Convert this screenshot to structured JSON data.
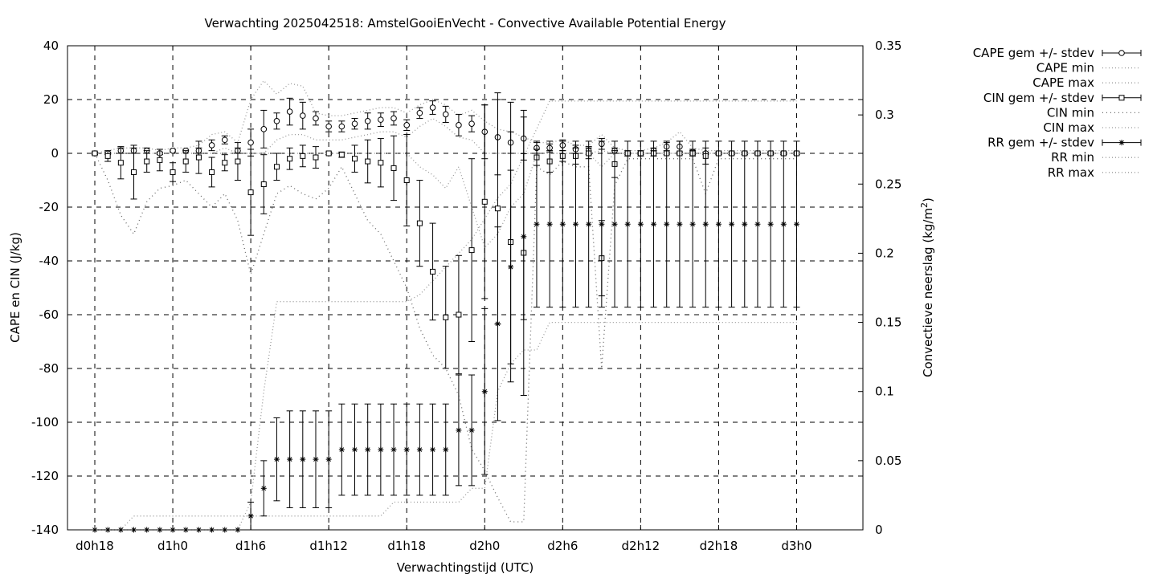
{
  "chart_data": {
    "type": "line",
    "title": "Verwachting 2025042518: AmstelGooiEnVecht - Convective Available Potential Energy",
    "xlabel": "Verwachtingstijd (UTC)",
    "ylabel": "CAPE en CIN (J/kg)",
    "y2label": "Convectieve neerslag (kg/m",
    "y2label_sup": "2",
    "y2label_end": ")",
    "xlim": [
      18,
      75
    ],
    "ylim": [
      -140,
      40
    ],
    "y2lim": [
      0,
      0.35
    ],
    "xticks": [
      {
        "value": 18,
        "label": "d0h18"
      },
      {
        "value": 24,
        "label": "d1h0"
      },
      {
        "value": 30,
        "label": "d1h6"
      },
      {
        "value": 36,
        "label": "d1h12"
      },
      {
        "value": 42,
        "label": "d1h18"
      },
      {
        "value": 48,
        "label": "d2h0"
      },
      {
        "value": 54,
        "label": "d2h6"
      },
      {
        "value": 60,
        "label": "d2h12"
      },
      {
        "value": 66,
        "label": "d2h18"
      },
      {
        "value": 72,
        "label": "d3h0"
      }
    ],
    "yticks": [
      {
        "value": 40,
        "label": "40"
      },
      {
        "value": 20,
        "label": "20"
      },
      {
        "value": 0,
        "label": "0"
      },
      {
        "value": -20,
        "label": "-20"
      },
      {
        "value": -40,
        "label": "-40"
      },
      {
        "value": -60,
        "label": "-60"
      },
      {
        "value": -80,
        "label": "-80"
      },
      {
        "value": -100,
        "label": "-100"
      },
      {
        "value": -120,
        "label": "-120"
      },
      {
        "value": -140,
        "label": "-140"
      }
    ],
    "y2ticks": [
      {
        "value": 0.35,
        "label": "0.35"
      },
      {
        "value": 0.3,
        "label": "0.3"
      },
      {
        "value": 0.25,
        "label": "0.25"
      },
      {
        "value": 0.2,
        "label": "0.2"
      },
      {
        "value": 0.15,
        "label": "0.15"
      },
      {
        "value": 0.1,
        "label": "0.1"
      },
      {
        "value": 0.05,
        "label": "0.05"
      },
      {
        "value": 0,
        "label": "0"
      }
    ],
    "grid": true,
    "legend_position": "outside-top-right",
    "x": [
      18,
      19,
      20,
      21,
      22,
      23,
      24,
      25,
      26,
      27,
      28,
      29,
      30,
      31,
      32,
      33,
      34,
      35,
      36,
      37,
      38,
      39,
      40,
      41,
      42,
      43,
      44,
      45,
      46,
      47,
      48,
      49,
      50,
      51,
      52,
      53,
      54,
      55,
      56,
      57,
      58,
      59,
      60,
      61,
      62,
      63,
      64,
      65,
      66,
      67,
      68,
      69,
      70,
      71,
      72
    ],
    "series": [
      {
        "name": "CAPE gem +/- stdev",
        "axis": "y1",
        "marker": "circle",
        "style": "errorbars",
        "mean": [
          0,
          0,
          1,
          1,
          1,
          0,
          1,
          1,
          1,
          3,
          5,
          1,
          4,
          9,
          12,
          15.5,
          14,
          13,
          10,
          10,
          11,
          12,
          12.5,
          13,
          10.5,
          15,
          17,
          14.5,
          10.5,
          11,
          8,
          6,
          4,
          5.5,
          2,
          2,
          3,
          1.5,
          1,
          3.5,
          1,
          0,
          0,
          1,
          2.5,
          2.5,
          0.5,
          0,
          0,
          0,
          0,
          0,
          0,
          0,
          0
        ],
        "stdev": [
          0.5,
          0.5,
          1,
          1,
          1,
          0.5,
          0.5,
          0.5,
          1,
          2,
          1.5,
          1,
          5,
          7,
          3,
          5,
          5,
          2.5,
          2,
          2,
          2,
          3,
          2.5,
          2.5,
          2,
          2,
          2.5,
          3,
          4,
          3,
          10,
          14,
          4,
          8,
          2,
          1.5,
          2,
          1.5,
          1.5,
          2,
          1,
          0.5,
          0.5,
          1,
          1.5,
          2,
          1,
          0.5,
          0.5,
          0.5,
          0.5,
          0.5,
          0.5,
          0.5,
          0.5
        ]
      },
      {
        "name": "CAPE min",
        "axis": "y1",
        "style": "dotted",
        "values": [
          0,
          0,
          0,
          0,
          0,
          0,
          0,
          0,
          0,
          0,
          2,
          0,
          0,
          0,
          5,
          7,
          7,
          5,
          5,
          5,
          6,
          7,
          8,
          8,
          6,
          10,
          13,
          10,
          6,
          5,
          0,
          0,
          0,
          0,
          0,
          0,
          0,
          0,
          0,
          1,
          0,
          0,
          0,
          0,
          0,
          0,
          0,
          0,
          0,
          0,
          0,
          0,
          0,
          0,
          0
        ]
      },
      {
        "name": "CAPE max",
        "axis": "y1",
        "style": "dotted",
        "values": [
          0,
          1,
          2,
          2,
          2,
          1,
          2,
          2,
          3,
          7,
          8,
          4,
          20,
          27,
          22,
          26,
          25,
          15,
          14,
          14,
          15,
          16,
          17,
          17,
          15,
          18,
          20,
          18,
          14,
          16,
          12,
          9,
          8,
          6,
          4,
          4,
          5,
          3,
          3,
          7,
          2,
          1,
          1,
          2,
          4,
          8,
          2,
          1,
          1,
          1,
          1,
          1,
          1,
          1,
          1
        ]
      },
      {
        "name": "CIN gem +/- stdev",
        "axis": "y1",
        "marker": "square",
        "style": "errorbars",
        "mean": [
          0,
          -1,
          -3.5,
          -7,
          -3,
          -2.5,
          -7,
          -3,
          -1.5,
          -7,
          -3.5,
          -3,
          -14.5,
          -11.5,
          -5,
          -2,
          -1,
          -1.5,
          0,
          -0.5,
          -2,
          -3,
          -3.5,
          -5.5,
          -10,
          -26,
          -44,
          -61,
          -60,
          -36,
          -18,
          -20.5,
          -33,
          -37,
          -1.5,
          -3,
          -1,
          -1,
          0,
          -39,
          -4,
          0,
          0,
          0,
          0,
          0,
          0,
          -1,
          0,
          0,
          0,
          0,
          0,
          0,
          0
        ],
        "stdev": [
          0.5,
          2,
          6,
          10,
          4,
          4,
          3.5,
          4,
          6,
          5.5,
          3,
          7,
          16,
          11,
          5,
          4,
          4,
          4,
          0.5,
          1,
          5,
          8,
          9,
          12,
          17,
          16,
          18,
          19,
          22,
          34,
          36,
          43,
          52,
          53,
          3,
          4,
          2,
          3,
          2,
          14,
          5,
          1,
          1,
          1,
          0.5,
          0.5,
          1,
          3,
          0.5,
          0.5,
          0.5,
          0.5,
          0.5,
          0.5,
          0.5
        ]
      },
      {
        "name": "CIN min",
        "axis": "y1",
        "style": "dotted",
        "values": [
          0,
          -10,
          -23,
          -30,
          -18,
          -13,
          -12,
          -10,
          -15,
          -20,
          -15,
          -25,
          -45,
          -30,
          -15,
          -12,
          -15,
          -17,
          -13,
          -5,
          -15,
          -25,
          -30,
          -40,
          -50,
          -65,
          -75,
          -80,
          -90,
          -110,
          -118,
          -128,
          -137,
          -137,
          -5,
          -8,
          -3,
          -5,
          -5,
          -80,
          -12,
          -2,
          -2,
          -2,
          -2,
          -2,
          -2,
          -15,
          -2,
          -2,
          -2,
          -2,
          -2,
          -2,
          -2
        ]
      },
      {
        "name": "CIN max",
        "axis": "y1",
        "style": "dotted",
        "values": [
          0,
          0,
          0,
          0,
          0,
          0,
          0,
          0,
          0,
          0,
          0,
          0,
          0,
          0,
          0,
          0,
          0,
          0,
          0,
          0,
          0,
          0,
          0,
          0,
          0,
          -5,
          -8,
          -13,
          -5,
          -20,
          -35,
          -30,
          -20,
          -15,
          0,
          0,
          0,
          0,
          0,
          -5,
          0,
          0,
          0,
          0,
          0,
          0,
          0,
          0,
          0,
          0,
          0,
          0,
          0,
          0,
          0
        ]
      },
      {
        "name": "RR gem +/- stdev",
        "axis": "y2",
        "marker": "star",
        "style": "errorbars",
        "mean": [
          0,
          0,
          0,
          0,
          0,
          0,
          0,
          0,
          0,
          0,
          0,
          0,
          0.01,
          0.03,
          0.051,
          0.051,
          0.051,
          0.051,
          0.051,
          0.058,
          0.058,
          0.058,
          0.058,
          0.058,
          0.058,
          0.058,
          0.058,
          0.058,
          0.072,
          0.072,
          0.1,
          0.149,
          0.19,
          0.212,
          0.221,
          0.221,
          0.221,
          0.221,
          0.221,
          0.221,
          0.221,
          0.221,
          0.221,
          0.221,
          0.221,
          0.221,
          0.221,
          0.221,
          0.221,
          0.221,
          0.221,
          0.221,
          0.221,
          0.221,
          0.221
        ],
        "stdev": [
          0,
          0,
          0,
          0,
          0,
          0,
          0,
          0,
          0,
          0,
          0,
          0,
          0.01,
          0.02,
          0.03,
          0.035,
          0.035,
          0.035,
          0.035,
          0.033,
          0.033,
          0.033,
          0.033,
          0.033,
          0.033,
          0.033,
          0.033,
          0.033,
          0.04,
          0.04,
          0.06,
          0.07,
          0.07,
          0.06,
          0.06,
          0.06,
          0.06,
          0.06,
          0.06,
          0.06,
          0.06,
          0.06,
          0.06,
          0.06,
          0.06,
          0.06,
          0.06,
          0.06,
          0.06,
          0.06,
          0.06,
          0.06,
          0.06,
          0.06,
          0.06
        ]
      },
      {
        "name": "RR min",
        "axis": "y2",
        "style": "dotted",
        "values": [
          0,
          0,
          0,
          0.01,
          0.01,
          0.01,
          0.01,
          0.01,
          0.01,
          0.01,
          0.01,
          0.01,
          0.01,
          0.01,
          0.01,
          0.01,
          0.01,
          0.01,
          0.01,
          0.01,
          0.01,
          0.01,
          0.01,
          0.02,
          0.02,
          0.02,
          0.02,
          0.02,
          0.02,
          0.03,
          0.03,
          0.1,
          0.12,
          0.13,
          0.13,
          0.15,
          0.15,
          0.15,
          0.15,
          0.15,
          0.15,
          0.15,
          0.15,
          0.15,
          0.15,
          0.15,
          0.15,
          0.15,
          0.15,
          0.15,
          0.15,
          0.15,
          0.15,
          0.15,
          0.15
        ]
      },
      {
        "name": "RR max",
        "axis": "y2",
        "style": "dotted",
        "values": [
          0,
          0,
          0,
          0,
          0,
          0,
          0,
          0,
          0,
          0,
          0,
          0,
          0.02,
          0.1,
          0.165,
          0.165,
          0.165,
          0.165,
          0.165,
          0.165,
          0.165,
          0.165,
          0.165,
          0.165,
          0.165,
          0.17,
          0.18,
          0.19,
          0.2,
          0.21,
          0.225,
          0.24,
          0.25,
          0.27,
          0.29,
          0.31,
          0.31,
          0.31,
          0.31,
          0.31,
          0.31,
          0.31,
          0.31,
          0.31,
          0.31,
          0.31,
          0.31,
          0.31,
          0.31,
          0.31,
          0.31,
          0.31,
          0.31,
          0.31,
          0.31
        ]
      }
    ]
  }
}
